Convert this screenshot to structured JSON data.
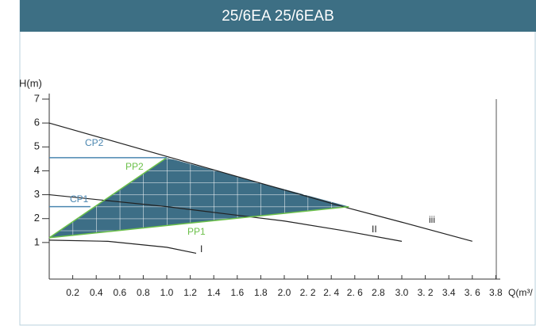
{
  "chart_data": {
    "type": "line",
    "title": "25/6EA 25/6EAB",
    "y_label": "H(m)",
    "x_label": "Q(m³/",
    "xlim": [
      0,
      3.8
    ],
    "ylim": [
      0,
      7
    ],
    "yticks": [
      1,
      2,
      3,
      4,
      5,
      6,
      7
    ],
    "xticks": [
      0.2,
      0.4,
      0.6,
      0.8,
      {
        "value": 1.0,
        "label": "1.0"
      },
      1.2,
      1.4,
      1.6,
      1.8,
      {
        "value": 2.0,
        "label": "2.0"
      },
      {
        "value": 2.2,
        "label": "2. 2"
      },
      {
        "value": 2.4,
        "label": "2. 4"
      },
      {
        "value": 2.6,
        "label": "2. 6"
      },
      2.8,
      {
        "value": 3.0,
        "label": "3.0"
      },
      {
        "value": 3.2,
        "label": "3. 2"
      },
      3.4,
      {
        "value": 3.6,
        "label": "3. 6"
      },
      3.8
    ],
    "series": [
      {
        "name": "iii",
        "color": "#222222",
        "x": [
          0,
          1.0,
          2.0,
          2.5,
          3.0,
          3.6
        ],
        "values": [
          6,
          4.6,
          3.2,
          2.5,
          1.85,
          1.05
        ]
      },
      {
        "name": "II",
        "color": "#222222",
        "x": [
          0,
          0.5,
          1.0,
          1.5,
          2.0,
          2.5,
          3.0
        ],
        "values": [
          3.0,
          2.75,
          2.5,
          2.2,
          1.9,
          1.5,
          1.05
        ]
      },
      {
        "name": "I",
        "color": "#222222",
        "x": [
          0,
          0.5,
          1.0,
          1.25
        ],
        "values": [
          1.1,
          1.05,
          0.8,
          0.55
        ]
      },
      {
        "name": "PP2",
        "color": "#6cc04a",
        "x": [
          0,
          1.0
        ],
        "values": [
          1.2,
          4.55
        ]
      },
      {
        "name": "PP1",
        "color": "#6cc04a",
        "x": [
          0,
          2.55
        ],
        "values": [
          1.2,
          2.5
        ]
      },
      {
        "name": "CP2",
        "color": "#4a86b0",
        "x": [
          0,
          1.0
        ],
        "values": [
          4.55,
          4.55
        ]
      },
      {
        "name": "CP1",
        "color": "#4a86b0",
        "x": [
          0,
          0.35
        ],
        "values": [
          2.5,
          2.5
        ]
      }
    ]
  }
}
